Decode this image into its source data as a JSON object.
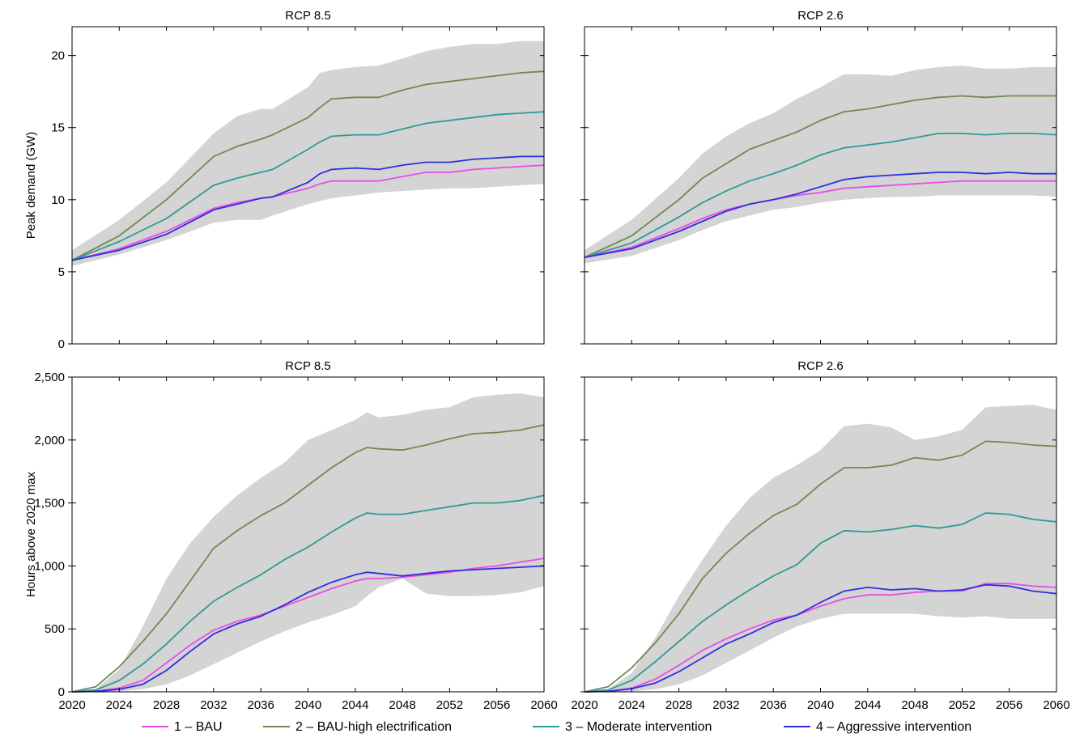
{
  "colors": {
    "band": "#d4d4d4",
    "series": [
      "#e84de8",
      "#6e8a52",
      "#2f9a96",
      "#2e2ee0"
    ]
  },
  "legend": {
    "placement": "bottom",
    "items": [
      "1 – BAU",
      "2 – BAU-high electrification",
      "3 – Moderate intervention",
      "4 – Aggressive intervention"
    ]
  },
  "chart_data": [
    {
      "type": "line",
      "title": "RCP 8.5",
      "ylabel": "Peak demand (GW)",
      "xlabel": "",
      "xlim": [
        2020,
        2060
      ],
      "ylim": [
        0,
        22
      ],
      "yticks": [
        0,
        5,
        10,
        15,
        20
      ],
      "ytick_labels": [
        "0",
        "5",
        "10",
        "15",
        "20"
      ],
      "xticks": [
        2020,
        2024,
        2028,
        2032,
        2036,
        2040,
        2044,
        2048,
        2052,
        2056,
        2060
      ],
      "xtick_labels": [],
      "x": [
        2020,
        2024,
        2028,
        2032,
        2034,
        2036,
        2037,
        2040,
        2041,
        2042,
        2044,
        2046,
        2048,
        2050,
        2052,
        2054,
        2056,
        2058,
        2060
      ],
      "band": {
        "lower": [
          5.4,
          6.2,
          7.2,
          8.4,
          8.6,
          8.6,
          8.9,
          9.7,
          9.9,
          10.1,
          10.3,
          10.5,
          10.6,
          10.7,
          10.8,
          10.8,
          10.9,
          11.0,
          11.1
        ],
        "upper": [
          6.5,
          8.6,
          11.2,
          14.6,
          15.8,
          16.3,
          16.3,
          17.8,
          18.8,
          19.0,
          19.2,
          19.3,
          19.8,
          20.3,
          20.6,
          20.8,
          20.8,
          21.0,
          21.0
        ]
      },
      "series": [
        {
          "name": "1 – BAU",
          "values": [
            5.8,
            6.6,
            7.8,
            9.4,
            9.8,
            10.1,
            10.2,
            10.8,
            11.1,
            11.3,
            11.3,
            11.3,
            11.6,
            11.9,
            11.9,
            12.1,
            12.2,
            12.3,
            12.4
          ]
        },
        {
          "name": "2 – BAU-high electrification",
          "values": [
            5.8,
            7.5,
            10.0,
            13.0,
            13.7,
            14.2,
            14.5,
            15.7,
            16.4,
            17.0,
            17.1,
            17.1,
            17.6,
            18.0,
            18.2,
            18.4,
            18.6,
            18.8,
            18.9
          ]
        },
        {
          "name": "3 – Moderate intervention",
          "values": [
            5.8,
            7.1,
            8.7,
            11.0,
            11.5,
            11.9,
            12.1,
            13.5,
            14.0,
            14.4,
            14.5,
            14.5,
            14.9,
            15.3,
            15.5,
            15.7,
            15.9,
            16.0,
            16.1
          ]
        },
        {
          "name": "4 – Aggressive intervention",
          "values": [
            5.8,
            6.5,
            7.6,
            9.3,
            9.7,
            10.1,
            10.2,
            11.2,
            11.8,
            12.1,
            12.2,
            12.1,
            12.4,
            12.6,
            12.6,
            12.8,
            12.9,
            13.0,
            13.0
          ]
        }
      ]
    },
    {
      "type": "line",
      "title": "RCP 2.6",
      "ylabel": "",
      "xlabel": "",
      "xlim": [
        2020,
        2060
      ],
      "ylim": [
        0,
        22
      ],
      "yticks": [
        0,
        5,
        10,
        15,
        20
      ],
      "ytick_labels": [],
      "xticks": [
        2020,
        2024,
        2028,
        2032,
        2036,
        2040,
        2044,
        2048,
        2052,
        2056,
        2060
      ],
      "xtick_labels": [],
      "x": [
        2020,
        2024,
        2028,
        2030,
        2032,
        2034,
        2036,
        2038,
        2040,
        2042,
        2044,
        2046,
        2048,
        2050,
        2052,
        2054,
        2056,
        2058,
        2060
      ],
      "band": {
        "lower": [
          5.6,
          6.1,
          7.2,
          7.9,
          8.5,
          8.9,
          9.3,
          9.5,
          9.8,
          10.0,
          10.1,
          10.2,
          10.2,
          10.3,
          10.3,
          10.3,
          10.3,
          10.3,
          10.2
        ],
        "upper": [
          6.5,
          8.6,
          11.5,
          13.2,
          14.4,
          15.3,
          16.0,
          17.0,
          17.8,
          18.7,
          18.7,
          18.6,
          19.0,
          19.2,
          19.3,
          19.1,
          19.1,
          19.2,
          19.2
        ]
      },
      "series": [
        {
          "name": "1 – BAU",
          "values": [
            6.0,
            6.7,
            8.0,
            8.7,
            9.3,
            9.7,
            10.0,
            10.3,
            10.5,
            10.8,
            10.9,
            11.0,
            11.1,
            11.2,
            11.3,
            11.3,
            11.3,
            11.3,
            11.3
          ]
        },
        {
          "name": "2 – BAU-high electrification",
          "values": [
            6.0,
            7.5,
            10.0,
            11.5,
            12.5,
            13.5,
            14.1,
            14.7,
            15.5,
            16.1,
            16.3,
            16.6,
            16.9,
            17.1,
            17.2,
            17.1,
            17.2,
            17.2,
            17.2
          ]
        },
        {
          "name": "3 – Moderate intervention",
          "values": [
            6.0,
            7.0,
            8.8,
            9.8,
            10.6,
            11.3,
            11.8,
            12.4,
            13.1,
            13.6,
            13.8,
            14.0,
            14.3,
            14.6,
            14.6,
            14.5,
            14.6,
            14.6,
            14.5
          ]
        },
        {
          "name": "4 – Aggressive intervention",
          "values": [
            6.0,
            6.6,
            7.8,
            8.5,
            9.2,
            9.7,
            10.0,
            10.4,
            10.9,
            11.4,
            11.6,
            11.7,
            11.8,
            11.9,
            11.9,
            11.8,
            11.9,
            11.8,
            11.8
          ]
        }
      ]
    },
    {
      "type": "line",
      "title": "RCP 8.5",
      "ylabel": "Hours above 2020 max",
      "xlabel": "",
      "xlim": [
        2020,
        2060
      ],
      "ylim": [
        0,
        2500
      ],
      "yticks": [
        0,
        500,
        1000,
        1500,
        2000,
        2500
      ],
      "ytick_labels": [
        "0",
        "500",
        "1,000",
        "1,500",
        "2,000",
        "2,500"
      ],
      "xticks": [
        2020,
        2024,
        2028,
        2032,
        2036,
        2040,
        2044,
        2048,
        2052,
        2056,
        2060
      ],
      "xtick_labels": [
        "2020",
        "2024",
        "2028",
        "2032",
        "2036",
        "2040",
        "2044",
        "2048",
        "2052",
        "2056",
        "2060"
      ],
      "x": [
        2020,
        2022,
        2024,
        2026,
        2028,
        2030,
        2032,
        2034,
        2036,
        2038,
        2040,
        2042,
        2044,
        2045,
        2046,
        2048,
        2050,
        2052,
        2054,
        2056,
        2058,
        2060
      ],
      "band": {
        "lower": [
          0,
          0,
          5,
          20,
          60,
          130,
          220,
          310,
          400,
          480,
          550,
          610,
          680,
          760,
          830,
          900,
          780,
          760,
          760,
          770,
          790,
          840
        ],
        "upper": [
          0,
          20,
          180,
          520,
          900,
          1180,
          1390,
          1560,
          1700,
          1820,
          2000,
          2080,
          2160,
          2220,
          2180,
          2200,
          2240,
          2260,
          2340,
          2360,
          2370,
          2340
        ]
      },
      "series": [
        {
          "name": "1 – BAU",
          "values": [
            0,
            5,
            30,
            90,
            230,
            370,
            490,
            560,
            610,
            680,
            750,
            820,
            880,
            900,
            900,
            910,
            930,
            950,
            980,
            1000,
            1030,
            1060
          ]
        },
        {
          "name": "2 – BAU-high electrification",
          "values": [
            0,
            40,
            200,
            400,
            620,
            880,
            1140,
            1280,
            1400,
            1500,
            1640,
            1780,
            1900,
            1940,
            1930,
            1920,
            1960,
            2010,
            2050,
            2060,
            2080,
            2120
          ]
        },
        {
          "name": "3 – Moderate intervention",
          "values": [
            0,
            15,
            90,
            220,
            380,
            560,
            720,
            830,
            930,
            1050,
            1150,
            1270,
            1380,
            1420,
            1410,
            1410,
            1440,
            1470,
            1500,
            1500,
            1520,
            1560
          ]
        },
        {
          "name": "4 – Aggressive intervention",
          "values": [
            0,
            3,
            20,
            60,
            170,
            320,
            460,
            540,
            600,
            690,
            790,
            870,
            930,
            950,
            940,
            920,
            940,
            960,
            970,
            980,
            990,
            1000
          ]
        }
      ]
    },
    {
      "type": "line",
      "title": "RCP 2.6",
      "ylabel": "",
      "xlabel": "",
      "xlim": [
        2020,
        2060
      ],
      "ylim": [
        0,
        2500
      ],
      "yticks": [
        0,
        500,
        1000,
        1500,
        2000,
        2500
      ],
      "ytick_labels": [],
      "xticks": [
        2020,
        2024,
        2028,
        2032,
        2036,
        2040,
        2044,
        2048,
        2052,
        2056,
        2060
      ],
      "xtick_labels": [
        "2020",
        "2024",
        "2028",
        "2032",
        "2036",
        "2040",
        "2044",
        "2048",
        "2052",
        "2056",
        "2060"
      ],
      "x": [
        2020,
        2022,
        2024,
        2026,
        2028,
        2030,
        2032,
        2034,
        2036,
        2038,
        2040,
        2042,
        2044,
        2046,
        2048,
        2050,
        2052,
        2054,
        2056,
        2058,
        2060
      ],
      "band": {
        "lower": [
          0,
          0,
          5,
          20,
          60,
          130,
          230,
          330,
          430,
          520,
          580,
          620,
          620,
          620,
          620,
          600,
          590,
          600,
          580,
          580,
          580
        ],
        "upper": [
          0,
          20,
          150,
          430,
          760,
          1050,
          1320,
          1540,
          1700,
          1800,
          1920,
          2110,
          2130,
          2100,
          2000,
          2030,
          2080,
          2260,
          2270,
          2280,
          2240
        ]
      },
      "series": [
        {
          "name": "1 – BAU",
          "values": [
            0,
            5,
            30,
            100,
            210,
            330,
            420,
            500,
            570,
            610,
            680,
            740,
            770,
            770,
            790,
            800,
            800,
            860,
            860,
            840,
            830
          ]
        },
        {
          "name": "2 – BAU-high electrification",
          "values": [
            0,
            40,
            190,
            390,
            620,
            900,
            1100,
            1260,
            1400,
            1490,
            1650,
            1780,
            1780,
            1800,
            1860,
            1840,
            1880,
            1990,
            1980,
            1960,
            1950
          ]
        },
        {
          "name": "3 – Moderate intervention",
          "values": [
            0,
            15,
            90,
            240,
            400,
            560,
            690,
            810,
            920,
            1010,
            1180,
            1280,
            1270,
            1290,
            1320,
            1300,
            1330,
            1420,
            1410,
            1370,
            1350
          ]
        },
        {
          "name": "4 – Aggressive intervention",
          "values": [
            0,
            3,
            25,
            70,
            160,
            270,
            380,
            460,
            550,
            610,
            710,
            800,
            830,
            810,
            820,
            800,
            810,
            850,
            840,
            800,
            780
          ]
        }
      ]
    }
  ]
}
